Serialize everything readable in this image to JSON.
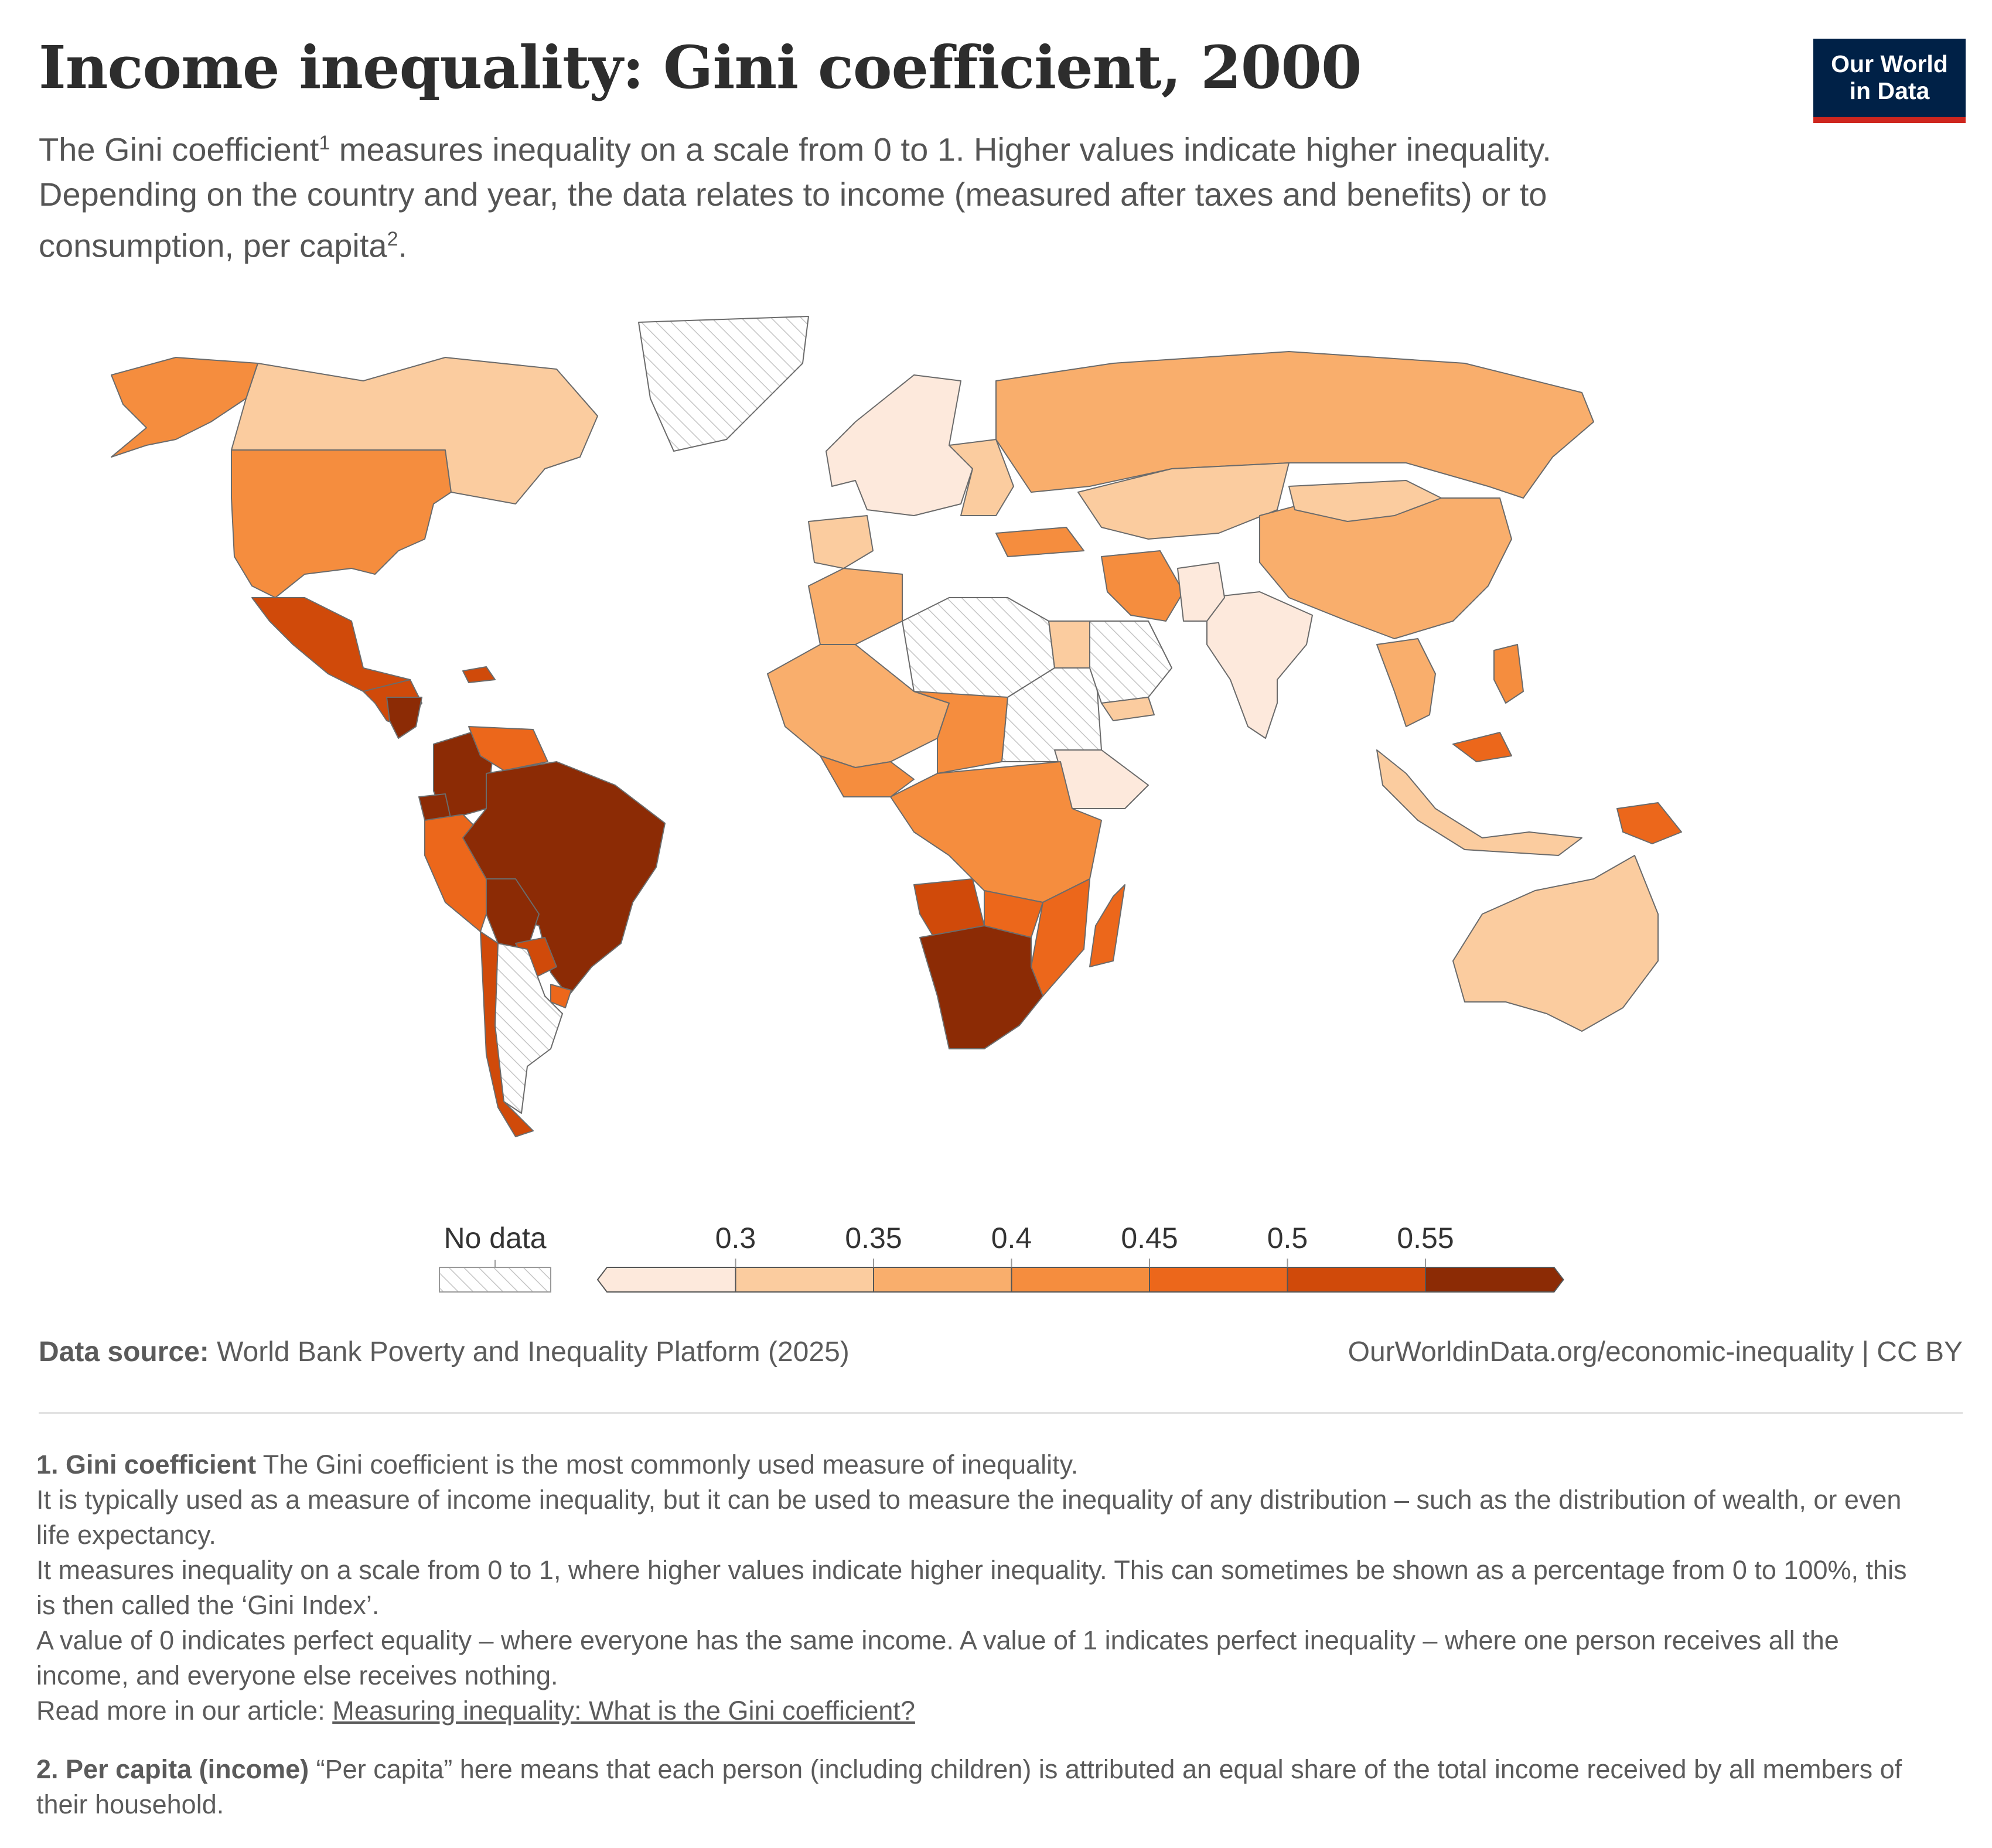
{
  "header": {
    "title": "Income inequality: Gini coefficient, 2000",
    "subtitle_part1": "The Gini coefficient",
    "subtitle_sup1": "1",
    "subtitle_part2": " measures inequality on a scale from 0 to 1. Higher values indicate higher inequality. Depending on the country and year, the data relates to income (measured after taxes and benefits) or to consumption, per capita",
    "subtitle_sup2": "2",
    "subtitle_part3": "."
  },
  "logo": {
    "line1": "Our World",
    "line2": "in Data"
  },
  "colors": {
    "no_data_hatch": "#bdbdbd",
    "border": "#6b6b6b",
    "scale": [
      "#fde9dc",
      "#fbcc9f",
      "#f9ae6c",
      "#f58d3e",
      "#ec671b",
      "#d04a0a",
      "#8c2b05"
    ]
  },
  "chart_data": {
    "type": "choropleth",
    "title": "Income inequality: Gini coefficient, 2000",
    "variable": "Gini coefficient",
    "year": 2000,
    "legend": {
      "no_data_label": "No data",
      "bins": [
        {
          "from": null,
          "to": 0.3,
          "color": "#fde9dc"
        },
        {
          "from": 0.3,
          "to": 0.35,
          "color": "#fbcc9f"
        },
        {
          "from": 0.35,
          "to": 0.4,
          "color": "#f9ae6c"
        },
        {
          "from": 0.4,
          "to": 0.45,
          "color": "#f58d3e"
        },
        {
          "from": 0.45,
          "to": 0.5,
          "color": "#ec671b"
        },
        {
          "from": 0.5,
          "to": 0.55,
          "color": "#d04a0a"
        },
        {
          "from": 0.55,
          "to": null,
          "color": "#8c2b05"
        }
      ],
      "tick_labels": [
        "0.3",
        "0.35",
        "0.4",
        "0.45",
        "0.5",
        "0.55"
      ]
    },
    "regions": [
      {
        "name": "United States",
        "bin": 3
      },
      {
        "name": "Canada",
        "bin": 1
      },
      {
        "name": "Alaska",
        "bin": 3
      },
      {
        "name": "Greenland",
        "bin": null
      },
      {
        "name": "Mexico",
        "bin": 5
      },
      {
        "name": "Central America",
        "bin": 5
      },
      {
        "name": "Honduras / Nicaragua",
        "bin": 6
      },
      {
        "name": "Haiti / Dominican Republic",
        "bin": 5
      },
      {
        "name": "Colombia",
        "bin": 6
      },
      {
        "name": "Venezuela",
        "bin": 4
      },
      {
        "name": "Ecuador",
        "bin": 6
      },
      {
        "name": "Peru",
        "bin": 4
      },
      {
        "name": "Brazil",
        "bin": 6
      },
      {
        "name": "Bolivia",
        "bin": 6
      },
      {
        "name": "Paraguay",
        "bin": 5
      },
      {
        "name": "Chile",
        "bin": 5
      },
      {
        "name": "Argentina",
        "bin": null
      },
      {
        "name": "Uruguay",
        "bin": 4
      },
      {
        "name": "Europe (west/north)",
        "bin": 0
      },
      {
        "name": "Iberia",
        "bin": 1
      },
      {
        "name": "Eastern Europe",
        "bin": 1
      },
      {
        "name": "Russia",
        "bin": 2
      },
      {
        "name": "Kazakhstan / Central Asia",
        "bin": 1
      },
      {
        "name": "Turkey",
        "bin": 3
      },
      {
        "name": "Iran",
        "bin": 3
      },
      {
        "name": "China",
        "bin": 2
      },
      {
        "name": "Mongolia",
        "bin": 1
      },
      {
        "name": "India",
        "bin": 0
      },
      {
        "name": "Pakistan",
        "bin": 0
      },
      {
        "name": "Southeast Asia",
        "bin": 2
      },
      {
        "name": "Philippines",
        "bin": 3
      },
      {
        "name": "Malaysia",
        "bin": 4
      },
      {
        "name": "Indonesia",
        "bin": 1
      },
      {
        "name": "Papua New Guinea",
        "bin": 4
      },
      {
        "name": "Australia",
        "bin": 1
      },
      {
        "name": "North Africa (Algeria/Libya)",
        "bin": null
      },
      {
        "name": "Morocco",
        "bin": 2
      },
      {
        "name": "Egypt",
        "bin": 1
      },
      {
        "name": "West Africa / Sahel",
        "bin": 2
      },
      {
        "name": "Nigeria / Gulf of Guinea",
        "bin": 3
      },
      {
        "name": "Chad / Niger",
        "bin": 3
      },
      {
        "name": "Sudan",
        "bin": null
      },
      {
        "name": "Ethiopia",
        "bin": 0
      },
      {
        "name": "Congo basin / East Africa",
        "bin": 3
      },
      {
        "name": "Angola",
        "bin": 5
      },
      {
        "name": "Zambia",
        "bin": 4
      },
      {
        "name": "Mozambique",
        "bin": 4
      },
      {
        "name": "Madagascar",
        "bin": 4
      },
      {
        "name": "Namibia / Botswana / South Africa",
        "bin": 6
      },
      {
        "name": "Saudi Arabia",
        "bin": null
      },
      {
        "name": "Yemen",
        "bin": 1
      }
    ]
  },
  "footer": {
    "source_label": "Data source:",
    "source_text": " World Bank Poverty and Inequality Platform (2025)",
    "credit": "OurWorldinData.org/economic-inequality  | CC BY"
  },
  "notes": {
    "n1_title": "1. Gini coefficient",
    "n1_l1": " The Gini coefficient is the most commonly used measure of inequality.",
    "n1_l2": "It is typically used as a measure of income inequality, but it can be used to measure the inequality of any distribution – such as the distribution of wealth, or even life expectancy.",
    "n1_l3": "It measures inequality on a scale from 0 to 1, where higher values indicate higher inequality. This can sometimes be shown as a percentage from 0 to 100%, this is then called the ‘Gini Index’.",
    "n1_l4": "A value of 0 indicates perfect equality – where everyone has the same income. A value of 1 indicates perfect inequality – where one person receives all the income, and everyone else receives nothing.",
    "n1_l5_prefix": "Read more in our article: ",
    "n1_link": "Measuring inequality: What is the Gini coefficient?",
    "n2_title": "2. Per capita (income)",
    "n2_text": " “Per capita” here means that each person (including children) is attributed an equal share of the total income received by all members of their household."
  }
}
